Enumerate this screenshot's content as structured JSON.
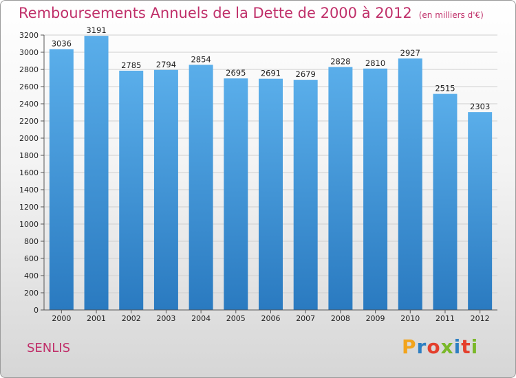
{
  "header": {
    "title": "Remboursements Annuels de la Dette de 2000 à 2012",
    "unit": "(en milliers d'€)"
  },
  "footer": {
    "city": "SENLIS",
    "logo": "Proxiti"
  },
  "colors": {
    "title": "#c0306a",
    "bar_top": "#5aaeea",
    "bar_bottom": "#2a7ac0"
  },
  "chart_data": {
    "type": "bar",
    "title": "Remboursements Annuels de la Dette de 2000 à 2012",
    "subtitle": "(en milliers d'€)",
    "categories": [
      "2000",
      "2001",
      "2002",
      "2003",
      "2004",
      "2005",
      "2006",
      "2007",
      "2008",
      "2009",
      "2010",
      "2011",
      "2012"
    ],
    "values": [
      3036,
      3191,
      2785,
      2794,
      2854,
      2695,
      2691,
      2679,
      2828,
      2810,
      2927,
      2515,
      2303
    ],
    "ylim": [
      0,
      3200
    ],
    "ytick_step": 200,
    "grid": true,
    "data_labels": true
  }
}
